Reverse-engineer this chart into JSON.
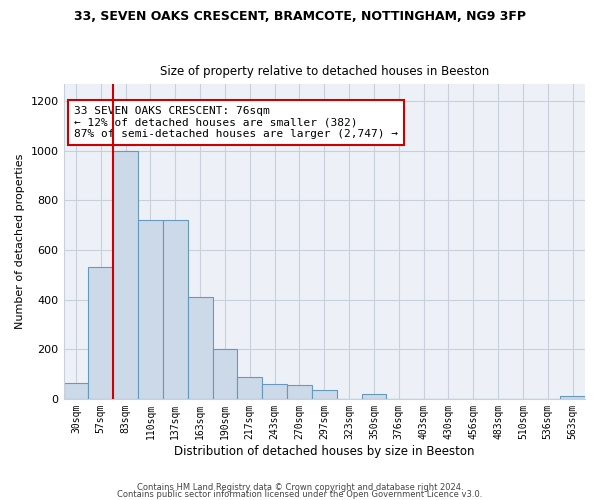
{
  "title1": "33, SEVEN OAKS CRESCENT, BRAMCOTE, NOTTINGHAM, NG9 3FP",
  "title2": "Size of property relative to detached houses in Beeston",
  "xlabel": "Distribution of detached houses by size in Beeston",
  "ylabel": "Number of detached properties",
  "bar_values": [
    65,
    530,
    1000,
    720,
    720,
    410,
    200,
    90,
    60,
    55,
    35,
    0,
    20,
    0,
    0,
    0,
    0,
    0,
    0,
    0,
    10
  ],
  "bar_labels": [
    "30sqm",
    "57sqm",
    "83sqm",
    "110sqm",
    "137sqm",
    "163sqm",
    "190sqm",
    "217sqm",
    "243sqm",
    "270sqm",
    "297sqm",
    "323sqm",
    "350sqm",
    "376sqm",
    "403sqm",
    "430sqm",
    "456sqm",
    "483sqm",
    "510sqm",
    "536sqm",
    "563sqm"
  ],
  "bar_color": "#ccd9e8",
  "bar_edge_color": "#6699bb",
  "redline_x": 2,
  "annotation_text": "33 SEVEN OAKS CRESCENT: 76sqm\n← 12% of detached houses are smaller (382)\n87% of semi-detached houses are larger (2,747) →",
  "annotation_box_color": "#ffffff",
  "annotation_box_edge": "#cc0000",
  "redline_color": "#cc0000",
  "footer1": "Contains HM Land Registry data © Crown copyright and database right 2024.",
  "footer2": "Contains public sector information licensed under the Open Government Licence v3.0.",
  "ylim": [
    0,
    1270
  ],
  "yticks": [
    0,
    200,
    400,
    600,
    800,
    1000,
    1200
  ],
  "plot_bg": "#edf1f7",
  "fig_bg": "#ffffff",
  "grid_color": "#c8d0dc"
}
